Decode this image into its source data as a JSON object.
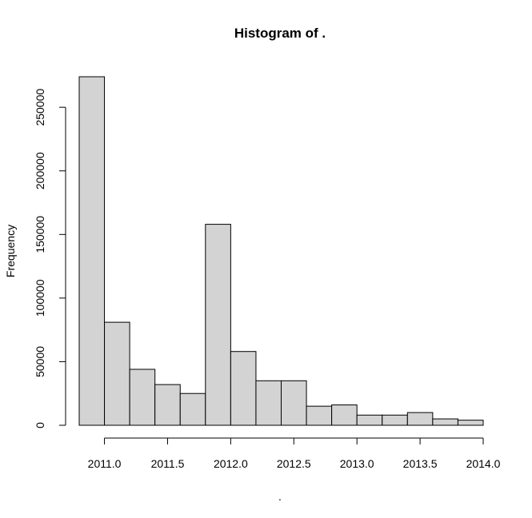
{
  "chart_data": {
    "type": "bar",
    "title": "Histogram of .",
    "xlabel": ".",
    "ylabel": "Frequency",
    "bar_fill": "#d3d3d3",
    "bar_stroke": "#000000",
    "bins": [
      {
        "x0": 2010.8,
        "x1": 2011.0,
        "count": 274000
      },
      {
        "x0": 2011.0,
        "x1": 2011.2,
        "count": 81000
      },
      {
        "x0": 2011.2,
        "x1": 2011.4,
        "count": 44000
      },
      {
        "x0": 2011.4,
        "x1": 2011.6,
        "count": 32000
      },
      {
        "x0": 2011.6,
        "x1": 2011.8,
        "count": 25000
      },
      {
        "x0": 2011.8,
        "x1": 2012.0,
        "count": 158000
      },
      {
        "x0": 2012.0,
        "x1": 2012.2,
        "count": 58000
      },
      {
        "x0": 2012.2,
        "x1": 2012.4,
        "count": 35000
      },
      {
        "x0": 2012.4,
        "x1": 2012.6,
        "count": 35000
      },
      {
        "x0": 2012.6,
        "x1": 2012.8,
        "count": 15000
      },
      {
        "x0": 2012.8,
        "x1": 2013.0,
        "count": 16000
      },
      {
        "x0": 2013.0,
        "x1": 2013.2,
        "count": 8000
      },
      {
        "x0": 2013.2,
        "x1": 2013.4,
        "count": 8000
      },
      {
        "x0": 2013.4,
        "x1": 2013.6,
        "count": 10000
      },
      {
        "x0": 2013.6,
        "x1": 2013.8,
        "count": 5000
      },
      {
        "x0": 2013.8,
        "x1": 2014.0,
        "count": 4000
      }
    ],
    "xticks": [
      2011.0,
      2011.5,
      2012.0,
      2012.5,
      2013.0,
      2013.5,
      2014.0
    ],
    "xtick_labels": [
      "2011.0",
      "2011.5",
      "2012.0",
      "2012.5",
      "2013.0",
      "2013.5",
      "2014.0"
    ],
    "yticks": [
      0,
      50000,
      100000,
      150000,
      200000,
      250000
    ],
    "ytick_labels": [
      "0",
      "50000",
      "100000",
      "150000",
      "200000",
      "250000"
    ],
    "xlim": [
      2010.8,
      2014.0
    ],
    "ylim": [
      0,
      274000
    ],
    "grid": false,
    "legend": "none"
  }
}
